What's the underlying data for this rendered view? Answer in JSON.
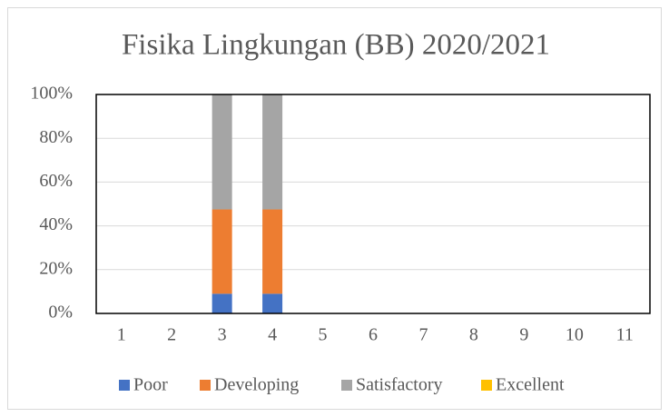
{
  "chart_data": {
    "type": "stacked_bar",
    "title": "Fisika Lingkungan (BB) 2020/2021",
    "categories": [
      "1",
      "2",
      "3",
      "4",
      "5",
      "6",
      "7",
      "8",
      "9",
      "10",
      "11"
    ],
    "series": [
      {
        "name": "Poor",
        "color": "#4472c4",
        "values": [
          0,
          0,
          9,
          9,
          0,
          0,
          0,
          0,
          0,
          0,
          0
        ]
      },
      {
        "name": "Developing",
        "color": "#ed7d31",
        "values": [
          0,
          0,
          38.5,
          38.5,
          0,
          0,
          0,
          0,
          0,
          0,
          0
        ]
      },
      {
        "name": "Satisfactory",
        "color": "#a5a5a5",
        "values": [
          0,
          0,
          52.5,
          52.5,
          0,
          0,
          0,
          0,
          0,
          0,
          0
        ]
      },
      {
        "name": "Excellent",
        "color": "#ffc000",
        "values": [
          0,
          0,
          0,
          0,
          0,
          0,
          0,
          0,
          0,
          0,
          0
        ]
      }
    ],
    "ylim": [
      0,
      100
    ],
    "yticks": [
      {
        "value": 0,
        "label": "0%"
      },
      {
        "value": 20,
        "label": "20%"
      },
      {
        "value": 40,
        "label": "40%"
      },
      {
        "value": 60,
        "label": "60%"
      },
      {
        "value": 80,
        "label": "80%"
      },
      {
        "value": 100,
        "label": "100%"
      }
    ],
    "grid": true,
    "legend": "bottom"
  }
}
